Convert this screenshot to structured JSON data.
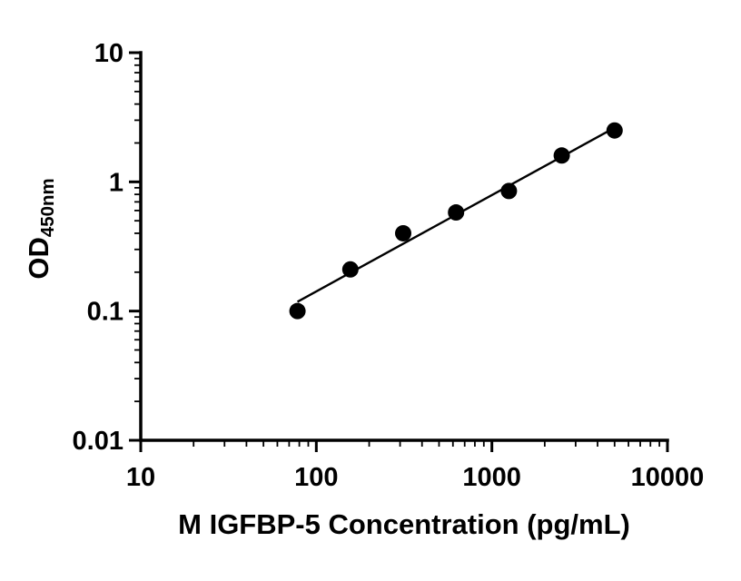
{
  "chart_data": {
    "type": "scatter",
    "xlabel": "M IGFBP-5 Concentration (pg/mL)",
    "ylabel_main": "OD",
    "ylabel_sub": "450nm",
    "x_scale": "log",
    "y_scale": "log",
    "xlim": [
      10,
      10000
    ],
    "ylim": [
      0.01,
      10
    ],
    "x_tick_values": [
      10,
      100,
      1000,
      10000
    ],
    "x_tick_labels": [
      "10",
      "100",
      "1000",
      "10000"
    ],
    "y_tick_values": [
      0.01,
      0.1,
      1,
      10
    ],
    "y_tick_labels": [
      "0.01",
      "0.1",
      "1",
      "10"
    ],
    "grid": false,
    "legend": "none",
    "series": [
      {
        "name": "standard-curve",
        "marker": "filled-circle",
        "trend_line": "linear-fit-log-log",
        "points": [
          {
            "x": 78.1,
            "y": 0.1
          },
          {
            "x": 156.3,
            "y": 0.21
          },
          {
            "x": 312.5,
            "y": 0.4
          },
          {
            "x": 625,
            "y": 0.58
          },
          {
            "x": 1250,
            "y": 0.85
          },
          {
            "x": 2500,
            "y": 1.6
          },
          {
            "x": 5000,
            "y": 2.5
          }
        ]
      }
    ],
    "colors": {
      "marker": "#000000",
      "line": "#000000",
      "axis": "#000000",
      "background": "#ffffff"
    }
  }
}
